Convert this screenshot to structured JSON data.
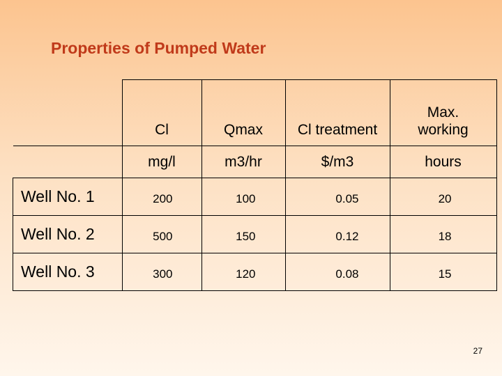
{
  "slide": {
    "title": "Properties of Pumped Water",
    "page_number": "27"
  },
  "table": {
    "headers": [
      "Cl",
      "Qmax",
      "Cl treatment",
      "Max. working"
    ],
    "units": [
      "mg/l",
      "m3/hr",
      "$/m3",
      "hours"
    ],
    "rows": [
      {
        "name": "Well No. 1",
        "values": [
          "200",
          "100",
          "0.05",
          "20"
        ]
      },
      {
        "name": "Well No. 2",
        "values": [
          "500",
          "150",
          "0.12",
          "18"
        ]
      },
      {
        "name": "Well No. 3",
        "values": [
          "300",
          "120",
          "0.08",
          "15"
        ]
      }
    ]
  },
  "colors": {
    "title": "#c03a1a",
    "background_top": "#fcc48f",
    "background_bottom": "#fff6ec"
  }
}
